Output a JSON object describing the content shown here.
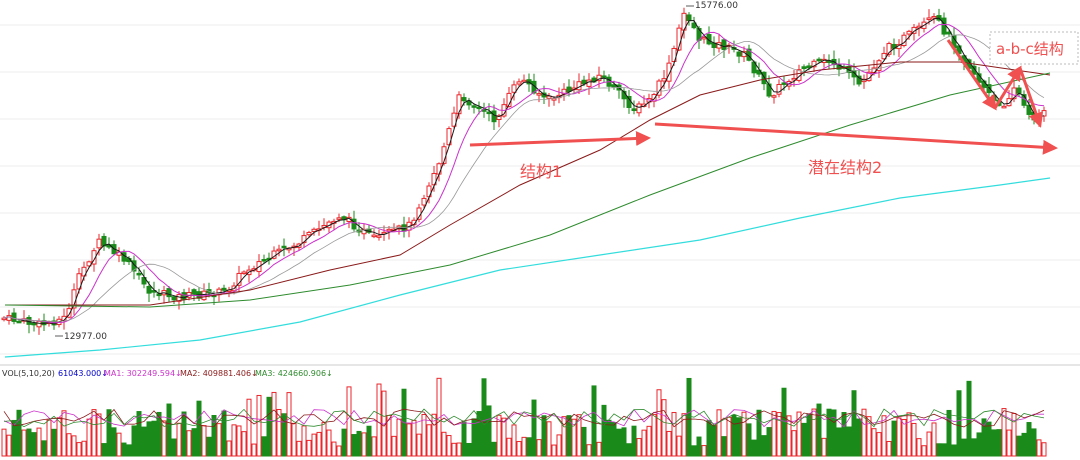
{
  "chart_data": {
    "type": "candlestick",
    "annotations": {
      "high_label": "15776.00",
      "low_label": "12977.00",
      "structure1": "结构1",
      "structure2": "潜在结构2",
      "abc": "a-b-c结构"
    },
    "volume_header": {
      "vol_label": "VOL(5,10,20)",
      "vol_value": "61043.000↓",
      "ma1_label": "MA1: 302249.594↓",
      "ma2_label": "MA2: 409881.406↓",
      "ma3_label": "MA3: 424660.906↓"
    },
    "price_range": [
      12500,
      15900
    ],
    "key_points": [
      {
        "name": "low",
        "value": 12977.0
      },
      {
        "name": "high",
        "value": 15776.0
      }
    ],
    "colors": {
      "up": "#e8262b",
      "down": "#1a8a1a",
      "ma_short": "#1a1a1a",
      "ma_mid": "#cc33cc",
      "ma_long": "#8b1a1a",
      "ma_longer": "#2e8b2e",
      "ma_longest": "#33dddd",
      "arrow": "#f05050"
    }
  }
}
